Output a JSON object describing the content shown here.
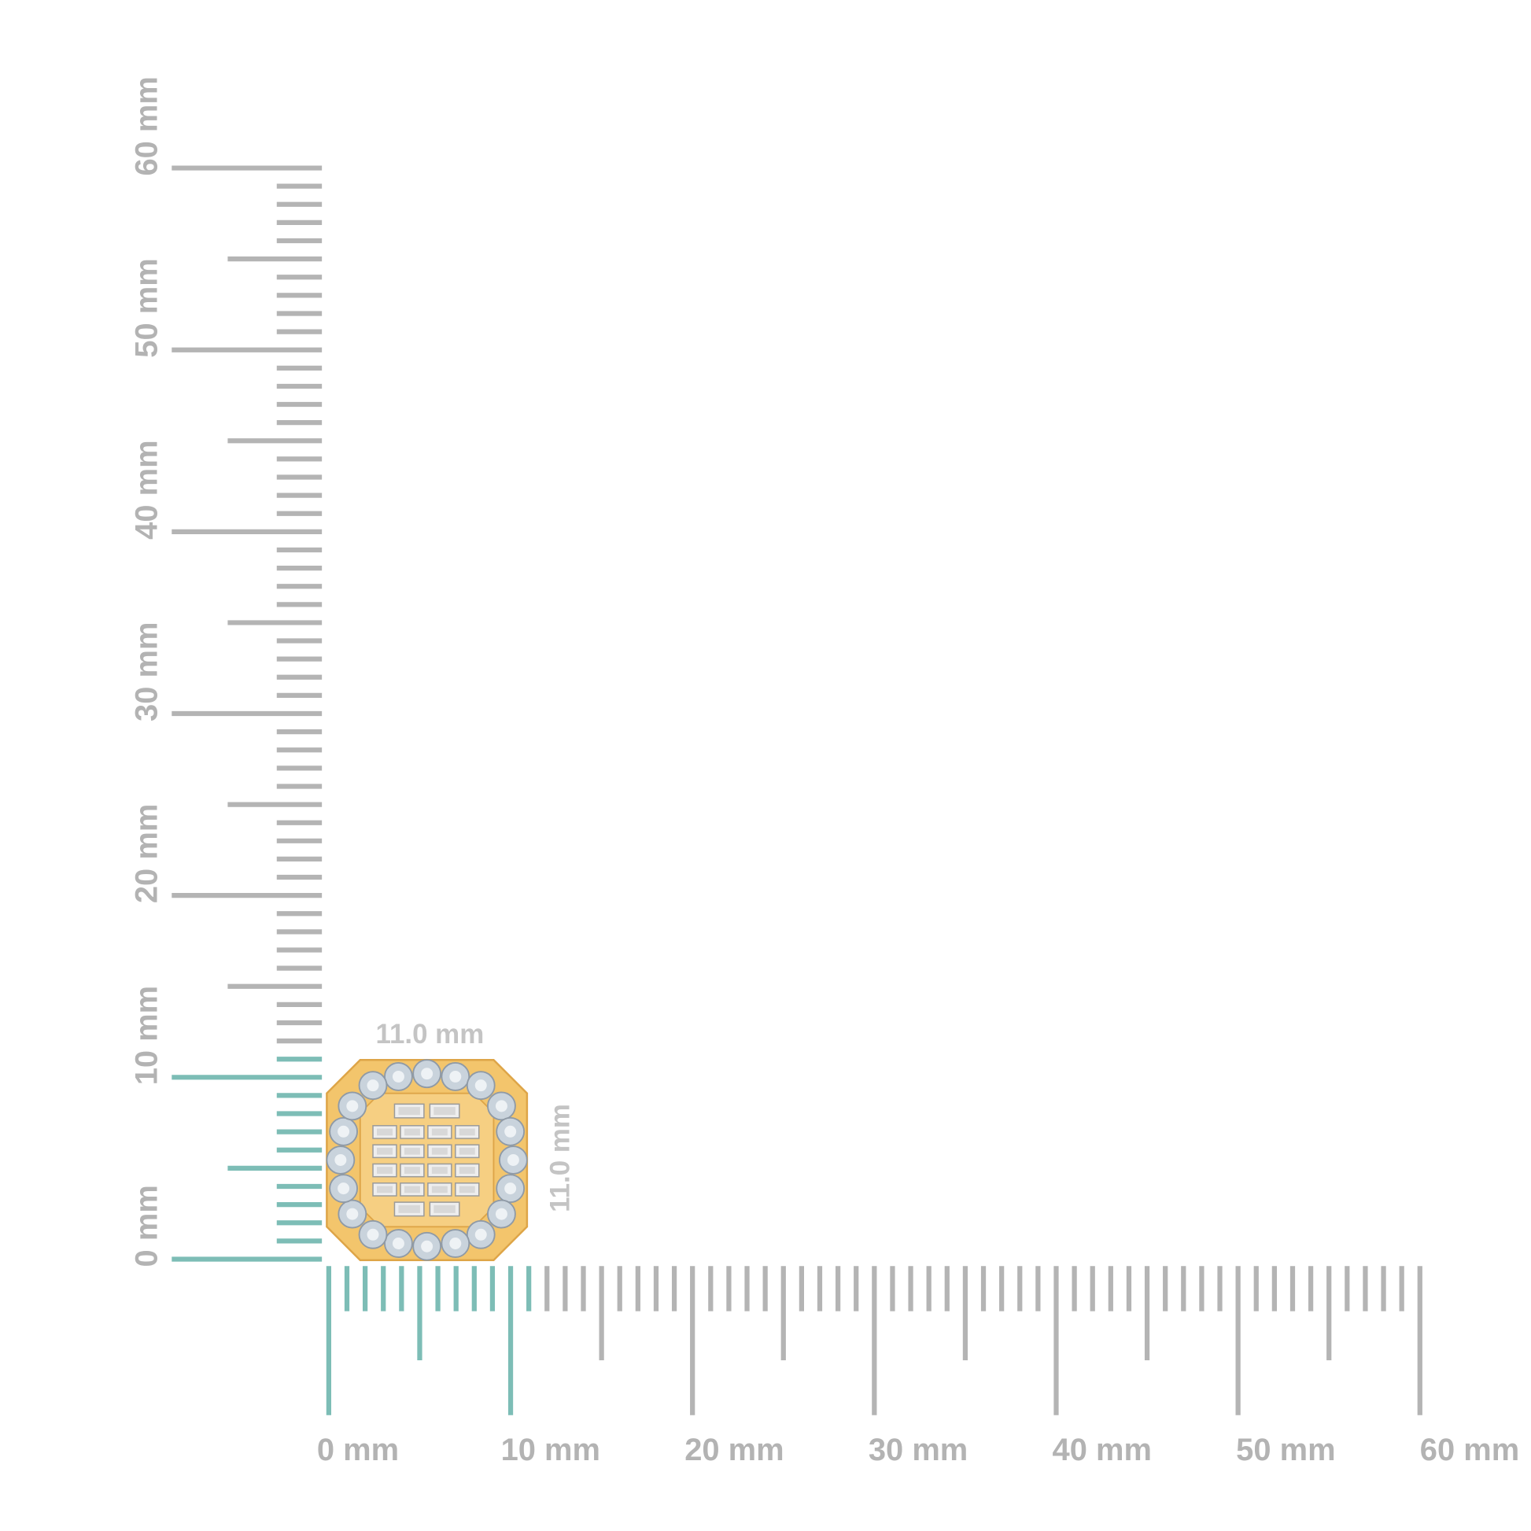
{
  "rulers": {
    "unit": "mm",
    "min": 0,
    "max": 60,
    "highlight_max": 11,
    "colors": {
      "tick": "#b4b4b4",
      "highlight": "#7dbdb6",
      "label": "#b3b3b3"
    },
    "vertical_labels": [
      "0 mm",
      "10 mm",
      "20 mm",
      "30 mm",
      "40 mm",
      "50 mm",
      "60 mm"
    ],
    "horizontal_labels": [
      "0 mm",
      "10 mm",
      "20 mm",
      "30 mm",
      "40 mm",
      "50 mm",
      "60 mm"
    ]
  },
  "product": {
    "width_label": "11.0 mm",
    "height_label": "11.0 mm",
    "colors": {
      "gold": "#f3c56c",
      "gold_edge": "#dea548",
      "diamond": "#c9d3dc",
      "baguette": "#eeeeee"
    }
  }
}
